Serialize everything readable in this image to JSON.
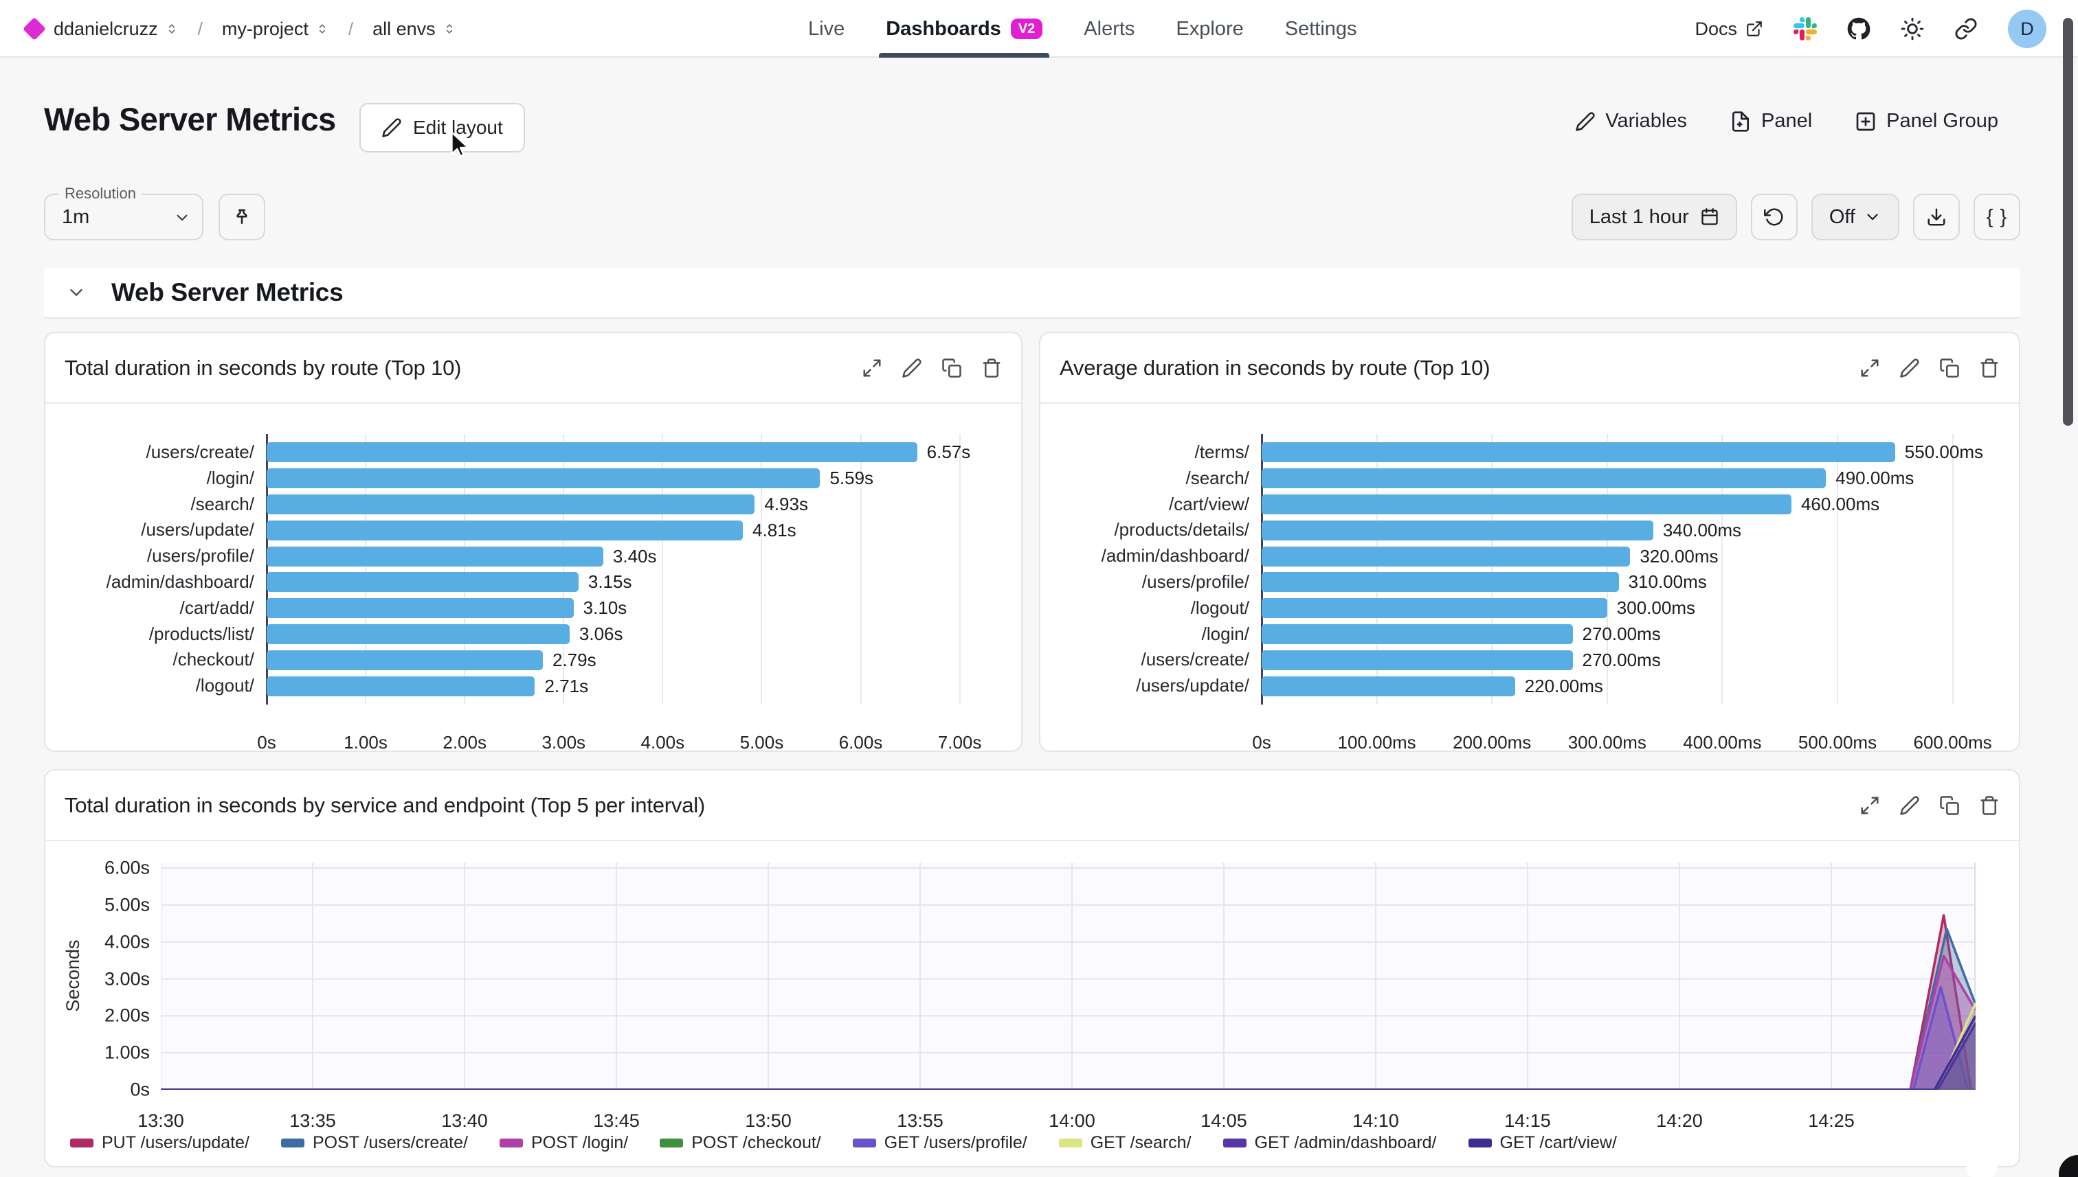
{
  "colors": {
    "accent_magenta": "#E21ED3",
    "bar_blue": "#58ADE3",
    "tab_underline": "#3E4C59",
    "avatar_bg": "#93C9F2"
  },
  "nav": {
    "breadcrumb": {
      "org": "ddanielcruzz",
      "project": "my-project",
      "env": "all envs",
      "separator": "/"
    },
    "tabs": [
      {
        "label": "Live",
        "active": false
      },
      {
        "label": "Dashboards",
        "badge": "V2",
        "active": true
      },
      {
        "label": "Alerts",
        "active": false
      },
      {
        "label": "Explore",
        "active": false
      },
      {
        "label": "Settings",
        "active": false
      }
    ],
    "docs": {
      "label": "Docs"
    },
    "avatar": {
      "letter": "D"
    }
  },
  "header": {
    "title": "Web Server Metrics",
    "edit_layout_label": "Edit layout",
    "variables_label": "Variables",
    "panel_label": "Panel",
    "panel_group_label": "Panel Group"
  },
  "toolbar": {
    "resolution_label": "Resolution",
    "resolution_value": "1m",
    "time_range_label": "Last 1 hour",
    "auto_refresh_value": "Off",
    "braces_label": "{ }"
  },
  "section": {
    "title": "Web Server Metrics"
  },
  "chart_data": [
    {
      "type": "bar",
      "orientation": "horizontal",
      "title": "Total duration in seconds by route (Top 10)",
      "categories": [
        "/users/create/",
        "/login/",
        "/search/",
        "/users/update/",
        "/users/profile/",
        "/admin/dashboard/",
        "/cart/add/",
        "/products/list/",
        "/checkout/",
        "/logout/"
      ],
      "values": [
        6.57,
        5.59,
        4.93,
        4.81,
        3.4,
        3.15,
        3.1,
        3.06,
        2.79,
        2.71
      ],
      "value_labels": [
        "6.57s",
        "5.59s",
        "4.93s",
        "4.81s",
        "3.40s",
        "3.15s",
        "3.10s",
        "3.06s",
        "2.79s",
        "2.71s"
      ],
      "unit": "s",
      "xlim": [
        0,
        7.44
      ],
      "xticks": [
        {
          "value": 0,
          "label": "0s"
        },
        {
          "value": 1,
          "label": "1.00s"
        },
        {
          "value": 2,
          "label": "2.00s"
        },
        {
          "value": 3,
          "label": "3.00s"
        },
        {
          "value": 4,
          "label": "4.00s"
        },
        {
          "value": 5,
          "label": "5.00s"
        },
        {
          "value": 6,
          "label": "6.00s"
        },
        {
          "value": 7,
          "label": "7.00s"
        }
      ],
      "bar_color": "#58ADE3"
    },
    {
      "type": "bar",
      "orientation": "horizontal",
      "title": "Average duration in seconds by route (Top 10)",
      "categories": [
        "/terms/",
        "/search/",
        "/cart/view/",
        "/products/details/",
        "/admin/dashboard/",
        "/users/profile/",
        "/logout/",
        "/login/",
        "/users/create/",
        "/users/update/"
      ],
      "values": [
        550,
        490,
        460,
        340,
        320,
        310,
        300,
        270,
        270,
        220
      ],
      "value_labels": [
        "550.00ms",
        "490.00ms",
        "460.00ms",
        "340.00ms",
        "320.00ms",
        "310.00ms",
        "300.00ms",
        "270.00ms",
        "270.00ms",
        "220.00ms"
      ],
      "unit": "ms",
      "xlim": [
        0,
        642
      ],
      "xticks": [
        {
          "value": 0,
          "label": "0s"
        },
        {
          "value": 100,
          "label": "100.00ms"
        },
        {
          "value": 200,
          "label": "200.00ms"
        },
        {
          "value": 300,
          "label": "300.00ms"
        },
        {
          "value": 400,
          "label": "400.00ms"
        },
        {
          "value": 500,
          "label": "500.00ms"
        },
        {
          "value": 600,
          "label": "600.00ms"
        }
      ],
      "bar_color": "#58ADE3"
    },
    {
      "type": "area",
      "title": "Total duration in seconds by service and endpoint (Top 5 per interval)",
      "ylabel": "Seconds",
      "ylim": [
        0,
        6
      ],
      "xlim": [
        0,
        59.75
      ],
      "grid": true,
      "legend_position": "bottom",
      "yticks": [
        {
          "value": 0,
          "label": "0s"
        },
        {
          "value": 1,
          "label": "1.00s"
        },
        {
          "value": 2,
          "label": "2.00s"
        },
        {
          "value": 3,
          "label": "3.00s"
        },
        {
          "value": 4,
          "label": "4.00s"
        },
        {
          "value": 5,
          "label": "5.00s"
        },
        {
          "value": 6,
          "label": "6.00s"
        }
      ],
      "xticks": [
        {
          "minute": 0,
          "label": "13:30"
        },
        {
          "minute": 5,
          "label": "13:35"
        },
        {
          "minute": 10,
          "label": "13:40"
        },
        {
          "minute": 15,
          "label": "13:45"
        },
        {
          "minute": 20,
          "label": "13:50"
        },
        {
          "minute": 25,
          "label": "13:55"
        },
        {
          "minute": 30,
          "label": "14:00"
        },
        {
          "minute": 35,
          "label": "14:05"
        },
        {
          "minute": 40,
          "label": "14:10"
        },
        {
          "minute": 45,
          "label": "14:15"
        },
        {
          "minute": 50,
          "label": "14:20"
        },
        {
          "minute": 55,
          "label": "14:25"
        }
      ],
      "series": [
        {
          "name": "PUT /users/update/",
          "color": "#B02A63",
          "points": [
            [
              0,
              0
            ],
            [
              57.6,
              0
            ],
            [
              58.7,
              4.72
            ],
            [
              59.6,
              0
            ],
            [
              59.75,
              0
            ]
          ]
        },
        {
          "name": "POST /users/create/",
          "color": "#3E6CA4",
          "points": [
            [
              0,
              0
            ],
            [
              57.6,
              0
            ],
            [
              58.8,
              4.35
            ],
            [
              59.75,
              2.3
            ]
          ]
        },
        {
          "name": "POST /login/",
          "color": "#B13FA8",
          "points": [
            [
              0,
              0
            ],
            [
              57.6,
              0
            ],
            [
              58.7,
              3.62
            ],
            [
              59.75,
              2.15
            ]
          ]
        },
        {
          "name": "POST /checkout/",
          "color": "#3F8F3D",
          "points": [
            [
              0,
              0
            ],
            [
              59.75,
              0
            ]
          ]
        },
        {
          "name": "GET /users/profile/",
          "color": "#6A52CC",
          "points": [
            [
              0,
              0
            ],
            [
              57.7,
              0
            ],
            [
              58.6,
              2.78
            ],
            [
              59.5,
              0
            ],
            [
              59.75,
              0
            ]
          ]
        },
        {
          "name": "GET /search/",
          "color": "#DCE583",
          "points": [
            [
              0,
              0
            ],
            [
              58.5,
              0
            ],
            [
              59.75,
              2.35
            ]
          ]
        },
        {
          "name": "GET /admin/dashboard/",
          "color": "#5537A8",
          "points": [
            [
              0,
              0
            ],
            [
              58.5,
              0
            ],
            [
              59.75,
              1.8
            ]
          ]
        },
        {
          "name": "GET /cart/view/",
          "color": "#3F2D92",
          "points": [
            [
              0,
              0
            ],
            [
              58.4,
              0
            ],
            [
              59.75,
              2.0
            ]
          ]
        }
      ]
    }
  ]
}
